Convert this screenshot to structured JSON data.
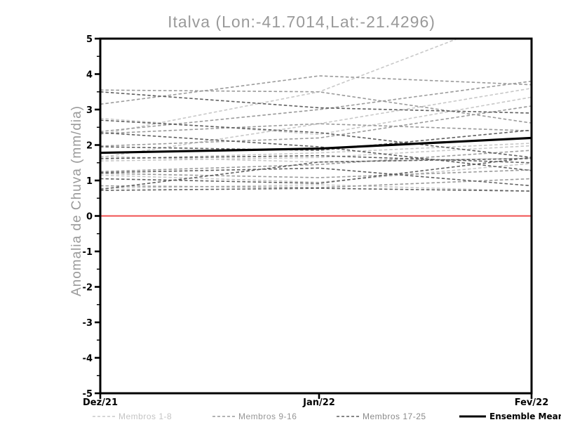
{
  "chart_data": {
    "type": "line",
    "title": "Italva (Lon:-41.7014,Lat:-21.4296)",
    "ylabel": "Anomalia de Chuva (mm/dia)",
    "xlabel": "",
    "x_categories": [
      "Dez/21",
      "Jan/22",
      "Fev/22"
    ],
    "ylim": [
      -5,
      5
    ],
    "y_ticks": [
      5,
      4,
      3,
      2,
      1,
      0,
      -1,
      -2,
      -3,
      -4,
      -5
    ],
    "y_minor_tick_interval": 0.5,
    "grid": false,
    "zero_line": {
      "value": 0,
      "color": "#f05050"
    },
    "ensemble_mean": {
      "name": "Ensemble Mean",
      "color": "#000000",
      "style": "solid",
      "values": [
        1.78,
        1.9,
        2.2
      ]
    },
    "groups": [
      {
        "name": "Membros 1-8",
        "color": "#c8c8c8",
        "style": "dashed",
        "members": [
          [
            2.3,
            3.5,
            5.8
          ],
          [
            1.65,
            2.6,
            3.6
          ],
          [
            2.75,
            2.3,
            3.35
          ],
          [
            1.6,
            1.78,
            2.05
          ],
          [
            1.55,
            1.65,
            1.98
          ],
          [
            1.15,
            0.95,
            1.48
          ],
          [
            0.78,
            0.88,
            0.7
          ],
          [
            1.68,
            1.52,
            1.63
          ]
        ]
      },
      {
        "name": "Membros 9-16",
        "color": "#9a9a9a",
        "style": "dashed",
        "members": [
          [
            3.55,
            3.5,
            2.62
          ],
          [
            3.15,
            3.95,
            3.7
          ],
          [
            2.38,
            3.0,
            3.8
          ],
          [
            2.32,
            2.6,
            2.4
          ],
          [
            1.97,
            2.2,
            3.1
          ],
          [
            1.25,
            1.45,
            1.85
          ],
          [
            1.2,
            1.08,
            1.3
          ],
          [
            0.85,
            0.8,
            1.05
          ]
        ]
      },
      {
        "name": "Membros 17-25",
        "color": "#5f5f5f",
        "style": "dashed",
        "members": [
          [
            3.5,
            3.05,
            2.9
          ],
          [
            2.7,
            2.35,
            1.65
          ],
          [
            2.35,
            1.95,
            1.28
          ],
          [
            1.95,
            1.85,
            2.42
          ],
          [
            1.62,
            1.7,
            1.5
          ],
          [
            1.22,
            1.35,
            0.85
          ],
          [
            1.05,
            0.92,
            1.65
          ],
          [
            0.75,
            1.52,
            1.62
          ],
          [
            0.72,
            0.78,
            0.7
          ]
        ]
      }
    ],
    "legend": [
      {
        "label": "Membros 1-8",
        "color": "#c8c8c8",
        "text_color": "#c4c4c4",
        "style": "dashed"
      },
      {
        "label": "Membros 9-16",
        "color": "#9a9a9a",
        "text_color": "#969696",
        "style": "dashed"
      },
      {
        "label": "Membros 17-25",
        "color": "#5f5f5f",
        "text_color": "#8a8a8a",
        "style": "dashed"
      },
      {
        "label": "Ensemble Mean",
        "color": "#000000",
        "text_color": "#000000",
        "style": "solid"
      }
    ],
    "legend_position": "bottom",
    "axis_color": "#000000"
  }
}
